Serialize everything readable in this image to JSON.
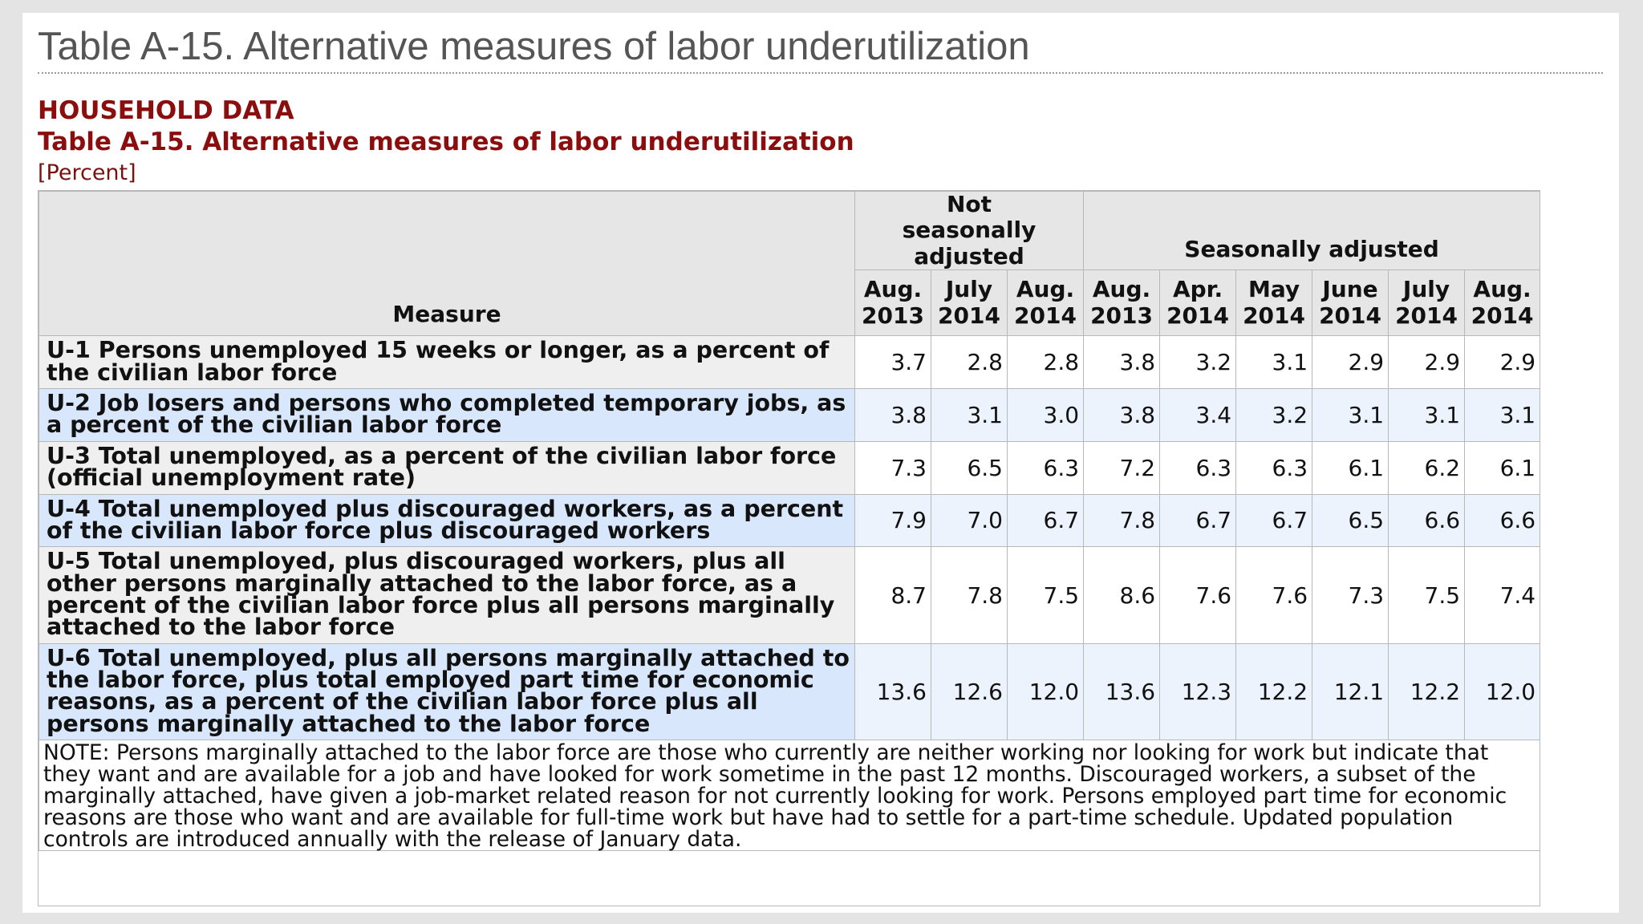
{
  "page": {
    "title": "Table A-15. Alternative measures of labor underutilization",
    "section": "HOUSEHOLD DATA",
    "table_title": "Table A-15. Alternative measures of labor underutilization",
    "unit": "[Percent]"
  },
  "table": {
    "measure_header": "Measure",
    "group_headers": [
      "Not seasonally adjusted",
      "Seasonally adjusted"
    ],
    "columns": [
      {
        "month": "Aug.",
        "year": "2013"
      },
      {
        "month": "July",
        "year": "2014"
      },
      {
        "month": "Aug.",
        "year": "2014"
      },
      {
        "month": "Aug.",
        "year": "2013"
      },
      {
        "month": "Apr.",
        "year": "2014"
      },
      {
        "month": "May",
        "year": "2014"
      },
      {
        "month": "June",
        "year": "2014"
      },
      {
        "month": "July",
        "year": "2014"
      },
      {
        "month": "Aug.",
        "year": "2014"
      }
    ],
    "rows": [
      {
        "label": "U-1 Persons unemployed 15 weeks or longer, as a percent of the civilian labor force",
        "values": [
          "3.7",
          "2.8",
          "2.8",
          "3.8",
          "3.2",
          "3.1",
          "2.9",
          "2.9",
          "2.9"
        ]
      },
      {
        "label": "U-2 Job losers and persons who completed temporary jobs, as a percent of the civilian labor force",
        "values": [
          "3.8",
          "3.1",
          "3.0",
          "3.8",
          "3.4",
          "3.2",
          "3.1",
          "3.1",
          "3.1"
        ]
      },
      {
        "label": "U-3 Total unemployed, as a percent of the civilian labor force (official unemployment rate)",
        "values": [
          "7.3",
          "6.5",
          "6.3",
          "7.2",
          "6.3",
          "6.3",
          "6.1",
          "6.2",
          "6.1"
        ]
      },
      {
        "label": "U-4 Total unemployed plus discouraged workers, as a percent of the civilian labor force plus discouraged workers",
        "values": [
          "7.9",
          "7.0",
          "6.7",
          "7.8",
          "6.7",
          "6.7",
          "6.5",
          "6.6",
          "6.6"
        ]
      },
      {
        "label": "U-5 Total unemployed, plus discouraged workers, plus all other persons marginally attached to the labor force, as a percent of the civilian labor force plus all persons marginally attached to the labor force",
        "values": [
          "8.7",
          "7.8",
          "7.5",
          "8.6",
          "7.6",
          "7.6",
          "7.3",
          "7.5",
          "7.4"
        ]
      },
      {
        "label": "U-6 Total unemployed, plus all persons marginally attached to the labor force, plus total employed part time for economic reasons, as a percent of the civilian labor force plus all persons marginally attached to the labor force",
        "values": [
          "13.6",
          "12.6",
          "12.0",
          "13.6",
          "12.3",
          "12.2",
          "12.1",
          "12.2",
          "12.0"
        ]
      }
    ],
    "note": "NOTE: Persons marginally attached to the labor force are those who currently are neither working nor looking for work but indicate that they want and are available for a job and have looked for work sometime in the past 12 months. Discouraged workers, a subset of the marginally attached, have given a job-market related reason for not currently looking for work. Persons employed part time for economic reasons are those who want and are available for full-time work but have had to settle for a part-time schedule. Updated population controls are introduced annually with the release of January data."
  }
}
